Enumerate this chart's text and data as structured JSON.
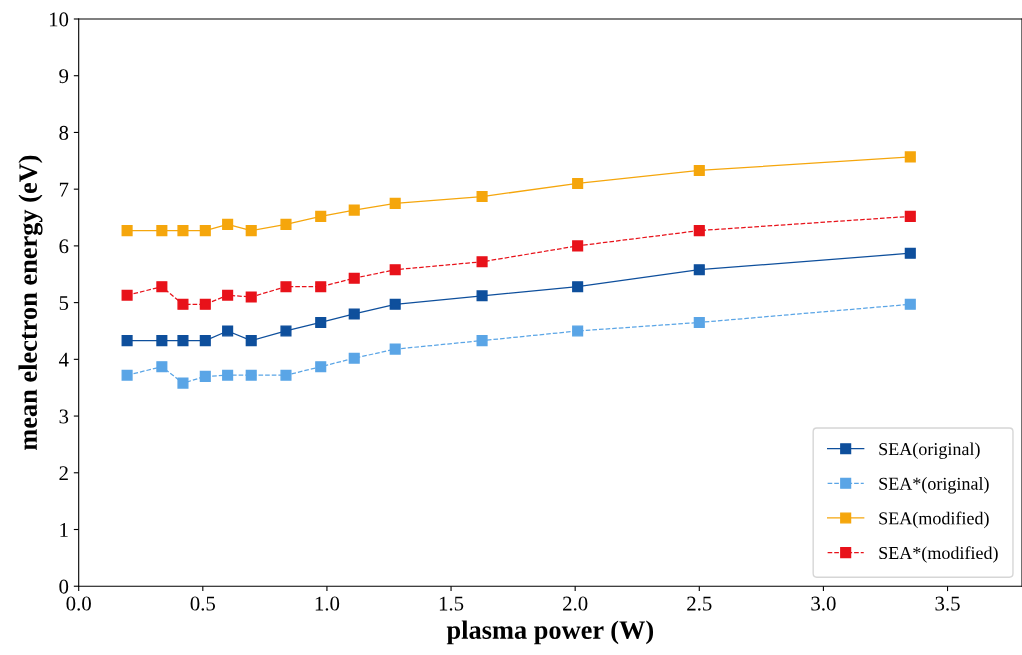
{
  "chart_data": {
    "type": "line",
    "xlabel": "plasma power (W)",
    "ylabel": "mean electron energy (eV)",
    "x": [
      0.195,
      0.335,
      0.42,
      0.51,
      0.6,
      0.695,
      0.835,
      0.975,
      1.11,
      1.275,
      1.625,
      2.01,
      2.5,
      3.35
    ],
    "series": [
      {
        "name": "SEA(original)",
        "color": "#0e4f9c",
        "line_style": "solid",
        "values": [
          4.33,
          4.33,
          4.33,
          4.33,
          4.5,
          4.33,
          4.5,
          4.65,
          4.8,
          4.97,
          5.12,
          5.28,
          5.58,
          5.87
        ]
      },
      {
        "name": "SEA*(original)",
        "color": "#5aa5e6",
        "line_style": "dashed",
        "values": [
          3.72,
          3.87,
          3.58,
          3.7,
          3.72,
          3.72,
          3.72,
          3.87,
          4.02,
          4.18,
          4.33,
          4.5,
          4.65,
          4.97
        ]
      },
      {
        "name": "SEA(modified)",
        "color": "#f5a60c",
        "line_style": "solid",
        "values": [
          6.27,
          6.27,
          6.27,
          6.27,
          6.38,
          6.27,
          6.38,
          6.52,
          6.63,
          6.75,
          6.87,
          7.1,
          7.33,
          7.57
        ]
      },
      {
        "name": "SEA*(modified)",
        "color": "#e8121a",
        "line_style": "dashed",
        "values": [
          5.13,
          5.28,
          4.97,
          4.97,
          5.13,
          5.1,
          5.28,
          5.28,
          5.43,
          5.58,
          5.72,
          6.0,
          6.27,
          6.52
        ]
      }
    ],
    "xlim": [
      0.0,
      3.8
    ],
    "xticks": [
      {
        "value": 0,
        "label": "0.0"
      },
      0.5,
      {
        "value": 1,
        "label": "1.0"
      },
      1.5,
      {
        "value": 2,
        "label": "2.0"
      },
      2.5,
      {
        "value": 3,
        "label": "3.0"
      },
      3.5
    ],
    "ylim": [
      0,
      10
    ],
    "yticks": [
      0,
      1,
      2,
      3,
      4,
      5,
      6,
      7,
      8,
      9,
      10
    ],
    "marker": "square",
    "grid": false,
    "legend": "bottom right"
  }
}
